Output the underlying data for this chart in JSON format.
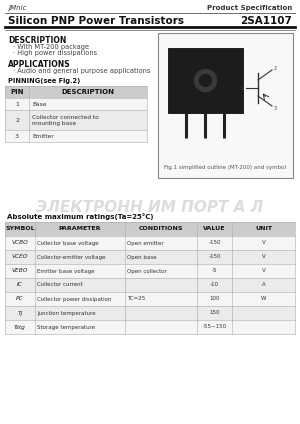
{
  "company": "JMnic",
  "doc_type": "Product Specification",
  "title": "Silicon PNP Power Transistors",
  "part_number": "2SA1107",
  "bg_color": "#ffffff",
  "desc_header": "DESCRIPTION",
  "desc_items": [
    "With MT-200 package",
    "High power dissipations"
  ],
  "app_header": "APPLICATIONS",
  "app_items": [
    "Audio and general purpose applications"
  ],
  "pin_header": "PINNING(see Fig.2)",
  "pin_cols": [
    "PIN",
    "DESCRIPTION"
  ],
  "pin_rows": [
    [
      "1",
      "Base"
    ],
    [
      "2",
      "Collector connected to\nmounting base"
    ],
    [
      "3",
      "Emitter"
    ]
  ],
  "fig_caption": "Fig.1 simplified outline (MT-200) and symbol",
  "abs_header": "Absolute maximum ratings(Ta=25°C)",
  "abs_cols": [
    "SYMBOL",
    "PARAMETER",
    "CONDITIONS",
    "VALUE",
    "UNIT"
  ],
  "abs_syms": [
    "VCBO",
    "VCEO",
    "VEBO",
    "IC",
    "PC",
    "Tj",
    "Tstg"
  ],
  "abs_rows": [
    [
      "VCBO",
      "Collector base voltage",
      "Open emitter",
      "-150",
      "V"
    ],
    [
      "VCEO",
      "Collector-emitter voltage",
      "Open base",
      "-150",
      "V"
    ],
    [
      "VEBO",
      "Emitter base voltage",
      "Open collector",
      "-5",
      "V"
    ],
    [
      "IC",
      "Collector current",
      "",
      "-10",
      "A"
    ],
    [
      "PC",
      "Collector power dissipation",
      "TC=25",
      "100",
      "W"
    ],
    [
      "Tj",
      "Junction temperature",
      "",
      "150",
      ""
    ],
    [
      "Tstg",
      "Storage temperature",
      "",
      "-55~150",
      ""
    ]
  ],
  "watermark": "ЭЛЕКТРОНН ИМ ПОРТ А Л",
  "header_line_color": "#333333",
  "table_header_bg": "#cccccc",
  "table_row_bg1": "#f5f5f5",
  "table_row_bg2": "#ebebeb",
  "table_line_color": "#aaaaaa",
  "fig_box_color": "#888888",
  "fig_box_bg": "#f8f8f8"
}
